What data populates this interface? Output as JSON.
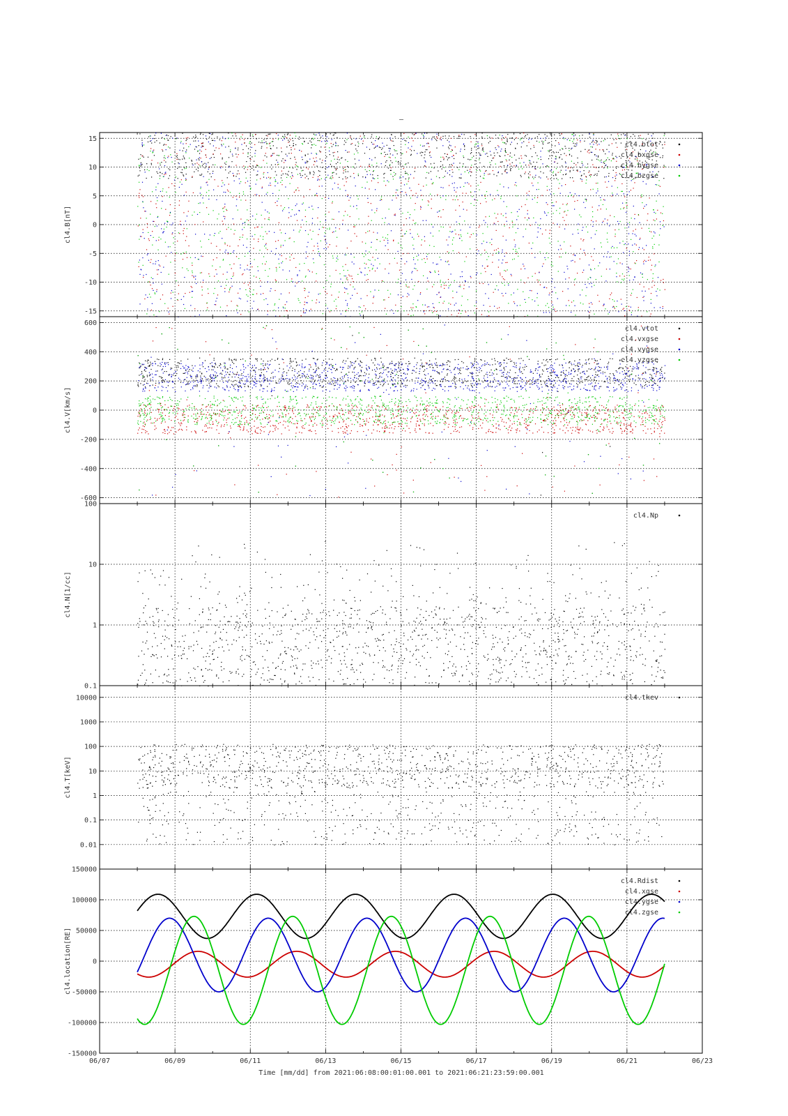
{
  "figure": {
    "top_mark": "–",
    "xlabel": "Time [mm/dd]  from 2021:06:08:00:01:00.001  to  2021:06:21:23:59:00.001",
    "x_ticks": [
      "06/07",
      "06/09",
      "06/11",
      "06/13",
      "06/15",
      "06/17",
      "06/19",
      "06/21",
      "06/23"
    ],
    "colors": {
      "black": "#000000",
      "red": "#cc0000",
      "blue": "#0000cc",
      "green": "#00cc00"
    }
  },
  "chart_data": [
    {
      "type": "scatter",
      "ylabel": "cl4.B[nT]",
      "ylim": [
        -16,
        16
      ],
      "yscale": "linear",
      "y_ticks": [
        "-15",
        "-10",
        "-5",
        "0",
        "5",
        "10",
        "15"
      ],
      "legend_position": "top-right",
      "series": [
        {
          "name": "cl4.btot",
          "color": "#000000"
        },
        {
          "name": "cl4.bxgse",
          "color": "#cc0000"
        },
        {
          "name": "cl4.bygse",
          "color": "#0000cc"
        },
        {
          "name": "cl4.bzgse",
          "color": "#00cc00"
        }
      ],
      "x_range_days": [
        "06/08",
        "06/22"
      ]
    },
    {
      "type": "scatter",
      "ylabel": "cl4.V[km/s]",
      "ylim": [
        -640,
        640
      ],
      "yscale": "linear",
      "y_ticks": [
        "-600",
        "-400",
        "-200",
        "0",
        "200",
        "400",
        "600"
      ],
      "legend_position": "top-right",
      "series": [
        {
          "name": "cl4.vtot",
          "color": "#000000"
        },
        {
          "name": "cl4.vxgse",
          "color": "#cc0000"
        },
        {
          "name": "cl4.vygse",
          "color": "#0000cc"
        },
        {
          "name": "cl4.vzgse",
          "color": "#00cc00"
        }
      ]
    },
    {
      "type": "scatter",
      "ylabel": "cl4.N[1/cc]",
      "ylim": [
        0.1,
        100
      ],
      "yscale": "log",
      "y_ticks": [
        "0.1",
        "1",
        "10",
        "100"
      ],
      "legend_position": "top-right",
      "series": [
        {
          "name": "cl4.Np",
          "color": "#000000"
        }
      ]
    },
    {
      "type": "scatter",
      "ylabel": "cl4.T[keV]",
      "ylim": [
        0.001,
        30000
      ],
      "yscale": "log",
      "y_ticks": [
        "0.01",
        "0.1",
        "1",
        "10",
        "100",
        "1000",
        "10000"
      ],
      "legend_position": "top-right",
      "series": [
        {
          "name": "cl4.tkev",
          "color": "#000000"
        }
      ]
    },
    {
      "type": "line",
      "ylabel": "cl4.location[RE]",
      "ylim": [
        -150000,
        150000
      ],
      "yscale": "linear",
      "y_ticks": [
        "-150000",
        "-100000",
        "-50000",
        "0",
        "50000",
        "100000",
        "150000"
      ],
      "legend_position": "top-right",
      "series": [
        {
          "name": "cl4.Rdist",
          "color": "#000000"
        },
        {
          "name": "cl4.xgse",
          "color": "#cc0000"
        },
        {
          "name": "cl4.ygse",
          "color": "#0000cc"
        },
        {
          "name": "cl4.zgse",
          "color": "#00cc00"
        }
      ]
    }
  ]
}
